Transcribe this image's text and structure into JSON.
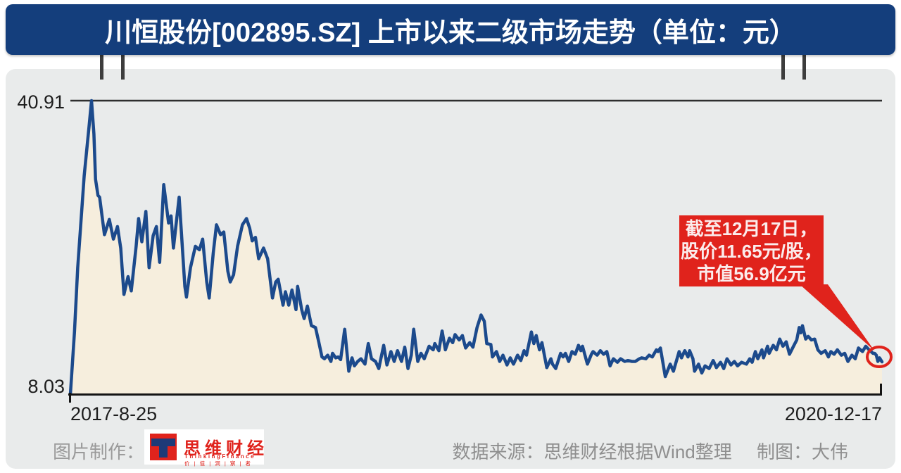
{
  "banner": {
    "title": "川恒股份[002895.SZ] 上市以来二级市场走势（单位：元）",
    "bg_color": "#143e7c"
  },
  "chart_data": {
    "type": "area",
    "title": "川恒股份[002895.SZ] 上市以来二级市场走势",
    "unit": "元",
    "ylim": [
      8.03,
      40.91
    ],
    "y_max_label": "40.91",
    "y_min_label": "8.03",
    "x_start_label": "2017-8-25",
    "x_end_label": "2020-12-17",
    "legend": "none",
    "grid": "off",
    "line_color": "#1c4a8c",
    "fill_color": "#f6eedd",
    "last_price": 11.65,
    "points": [
      [
        0,
        8.03
      ],
      [
        0.005,
        15.0
      ],
      [
        0.009,
        22.2
      ],
      [
        0.017,
        32.5
      ],
      [
        0.023,
        38.0
      ],
      [
        0.026,
        40.91
      ],
      [
        0.029,
        37.2
      ],
      [
        0.031,
        32.1
      ],
      [
        0.034,
        30.3
      ],
      [
        0.036,
        30.1
      ],
      [
        0.042,
        25.9
      ],
      [
        0.048,
        27.6
      ],
      [
        0.053,
        25.4
      ],
      [
        0.058,
        26.8
      ],
      [
        0.062,
        24.4
      ],
      [
        0.066,
        19.2
      ],
      [
        0.071,
        21.2
      ],
      [
        0.075,
        19.6
      ],
      [
        0.081,
        24.6
      ],
      [
        0.084,
        27.7
      ],
      [
        0.088,
        25.1
      ],
      [
        0.093,
        28.5
      ],
      [
        0.097,
        22.2
      ],
      [
        0.102,
        25.8
      ],
      [
        0.106,
        26.8
      ],
      [
        0.11,
        22.8
      ],
      [
        0.115,
        31.5
      ],
      [
        0.121,
        27.2
      ],
      [
        0.124,
        28.0
      ],
      [
        0.127,
        24.4
      ],
      [
        0.134,
        30.1
      ],
      [
        0.141,
        20.1
      ],
      [
        0.143,
        18.9
      ],
      [
        0.148,
        22.2
      ],
      [
        0.154,
        24.6
      ],
      [
        0.159,
        24.2
      ],
      [
        0.163,
        25.4
      ],
      [
        0.168,
        20.6
      ],
      [
        0.171,
        18.8
      ],
      [
        0.176,
        23.8
      ],
      [
        0.18,
        27.0
      ],
      [
        0.185,
        25.9
      ],
      [
        0.189,
        26.2
      ],
      [
        0.194,
        21.8
      ],
      [
        0.197,
        20.6
      ],
      [
        0.201,
        21.4
      ],
      [
        0.206,
        24.6
      ],
      [
        0.212,
        27.0
      ],
      [
        0.217,
        27.7
      ],
      [
        0.221,
        26.6
      ],
      [
        0.224,
        25.2
      ],
      [
        0.228,
        25.6
      ],
      [
        0.232,
        23.2
      ],
      [
        0.238,
        24.4
      ],
      [
        0.243,
        23.2
      ],
      [
        0.249,
        18.8
      ],
      [
        0.253,
        20.6
      ],
      [
        0.256,
        20.9
      ],
      [
        0.262,
        18.0
      ],
      [
        0.265,
        19.5
      ],
      [
        0.269,
        18.0
      ],
      [
        0.273,
        19.7
      ],
      [
        0.278,
        17.5
      ],
      [
        0.28,
        20.1
      ],
      [
        0.285,
        17.5
      ],
      [
        0.288,
        16.5
      ],
      [
        0.292,
        17.9
      ],
      [
        0.297,
        15.7
      ],
      [
        0.302,
        15.5
      ],
      [
        0.306,
        13.9
      ],
      [
        0.31,
        12.2
      ],
      [
        0.313,
        12.0
      ],
      [
        0.317,
        12.4
      ],
      [
        0.321,
        11.7
      ],
      [
        0.323,
        12.6
      ],
      [
        0.327,
        12.1
      ],
      [
        0.33,
        12.2
      ],
      [
        0.333,
        11.9
      ],
      [
        0.338,
        15.3
      ],
      [
        0.343,
        10.6
      ],
      [
        0.347,
        12.1
      ],
      [
        0.35,
        11.2
      ],
      [
        0.354,
        11.7
      ],
      [
        0.358,
        12.0
      ],
      [
        0.363,
        11.4
      ],
      [
        0.367,
        13.7
      ],
      [
        0.371,
        12.0
      ],
      [
        0.376,
        11.7
      ],
      [
        0.38,
        10.9
      ],
      [
        0.386,
        13.5
      ],
      [
        0.39,
        11.3
      ],
      [
        0.395,
        12.8
      ],
      [
        0.399,
        11.7
      ],
      [
        0.403,
        12.9
      ],
      [
        0.408,
        11.7
      ],
      [
        0.412,
        13.3
      ],
      [
        0.416,
        10.9
      ],
      [
        0.42,
        12.4
      ],
      [
        0.423,
        15.3
      ],
      [
        0.428,
        11.7
      ],
      [
        0.432,
        12.6
      ],
      [
        0.436,
        12.0
      ],
      [
        0.442,
        13.4
      ],
      [
        0.447,
        13.0
      ],
      [
        0.449,
        13.7
      ],
      [
        0.454,
        12.9
      ],
      [
        0.458,
        15.1
      ],
      [
        0.462,
        13.0
      ],
      [
        0.467,
        14.3
      ],
      [
        0.471,
        13.8
      ],
      [
        0.474,
        14.7
      ],
      [
        0.479,
        14.1
      ],
      [
        0.483,
        14.6
      ],
      [
        0.487,
        13.2
      ],
      [
        0.492,
        13.8
      ],
      [
        0.496,
        13.3
      ],
      [
        0.501,
        15.5
      ],
      [
        0.506,
        16.9
      ],
      [
        0.51,
        16.2
      ],
      [
        0.513,
        13.7
      ],
      [
        0.518,
        13.6
      ],
      [
        0.52,
        12.2
      ],
      [
        0.525,
        12.8
      ],
      [
        0.529,
        11.7
      ],
      [
        0.533,
        12.4
      ],
      [
        0.538,
        11.3
      ],
      [
        0.542,
        12.1
      ],
      [
        0.546,
        11.4
      ],
      [
        0.551,
        12.4
      ],
      [
        0.555,
        11.8
      ],
      [
        0.559,
        12.9
      ],
      [
        0.562,
        12.4
      ],
      [
        0.568,
        15.0
      ],
      [
        0.571,
        13.7
      ],
      [
        0.574,
        14.6
      ],
      [
        0.578,
        13.0
      ],
      [
        0.581,
        13.8
      ],
      [
        0.587,
        11.0
      ],
      [
        0.592,
        12.0
      ],
      [
        0.594,
        11.4
      ],
      [
        0.598,
        10.9
      ],
      [
        0.604,
        12.6
      ],
      [
        0.607,
        12.2
      ],
      [
        0.61,
        12.6
      ],
      [
        0.614,
        11.7
      ],
      [
        0.618,
        12.8
      ],
      [
        0.622,
        12.5
      ],
      [
        0.626,
        13.5
      ],
      [
        0.629,
        12.9
      ],
      [
        0.631,
        13.4
      ],
      [
        0.637,
        11.4
      ],
      [
        0.642,
        12.5
      ],
      [
        0.644,
        12.8
      ],
      [
        0.649,
        12.4
      ],
      [
        0.653,
        12.9
      ],
      [
        0.657,
        12.5
      ],
      [
        0.661,
        12.8
      ],
      [
        0.665,
        11.2
      ],
      [
        0.669,
        12.0
      ],
      [
        0.674,
        11.6
      ],
      [
        0.678,
        12.0
      ],
      [
        0.683,
        11.7
      ],
      [
        0.687,
        11.8
      ],
      [
        0.692,
        11.7
      ],
      [
        0.696,
        11.7
      ],
      [
        0.701,
        12.0
      ],
      [
        0.704,
        12.1
      ],
      [
        0.709,
        12.0
      ],
      [
        0.713,
        12.4
      ],
      [
        0.717,
        12.2
      ],
      [
        0.722,
        13.0
      ],
      [
        0.724,
        12.8
      ],
      [
        0.727,
        13.2
      ],
      [
        0.733,
        10.0
      ],
      [
        0.739,
        11.4
      ],
      [
        0.743,
        10.6
      ],
      [
        0.75,
        12.8
      ],
      [
        0.753,
        12.1
      ],
      [
        0.757,
        12.9
      ],
      [
        0.761,
        12.2
      ],
      [
        0.763,
        12.9
      ],
      [
        0.767,
        12.0
      ],
      [
        0.769,
        10.6
      ],
      [
        0.774,
        11.4
      ],
      [
        0.778,
        10.4
      ],
      [
        0.782,
        11.2
      ],
      [
        0.787,
        10.9
      ],
      [
        0.792,
        11.8
      ],
      [
        0.796,
        11.0
      ],
      [
        0.801,
        11.6
      ],
      [
        0.805,
        10.9
      ],
      [
        0.809,
        12.0
      ],
      [
        0.814,
        11.3
      ],
      [
        0.818,
        11.7
      ],
      [
        0.822,
        11.2
      ],
      [
        0.827,
        11.6
      ],
      [
        0.833,
        11.4
      ],
      [
        0.837,
        12.0
      ],
      [
        0.84,
        11.6
      ],
      [
        0.844,
        12.8
      ],
      [
        0.847,
        12.0
      ],
      [
        0.852,
        13.0
      ],
      [
        0.854,
        12.1
      ],
      [
        0.859,
        13.4
      ],
      [
        0.861,
        12.6
      ],
      [
        0.866,
        13.5
      ],
      [
        0.87,
        13.0
      ],
      [
        0.874,
        14.2
      ],
      [
        0.878,
        13.4
      ],
      [
        0.882,
        13.9
      ],
      [
        0.886,
        12.5
      ],
      [
        0.891,
        13.4
      ],
      [
        0.895,
        14.1
      ],
      [
        0.898,
        15.5
      ],
      [
        0.9,
        14.9
      ],
      [
        0.902,
        15.7
      ],
      [
        0.906,
        14.2
      ],
      [
        0.909,
        14.5
      ],
      [
        0.913,
        14.1
      ],
      [
        0.917,
        14.2
      ],
      [
        0.921,
        13.0
      ],
      [
        0.925,
        12.6
      ],
      [
        0.93,
        12.9
      ],
      [
        0.934,
        12.2
      ],
      [
        0.937,
        12.8
      ],
      [
        0.941,
        12.5
      ],
      [
        0.945,
        13.0
      ],
      [
        0.95,
        12.4
      ],
      [
        0.954,
        12.6
      ],
      [
        0.958,
        11.7
      ],
      [
        0.963,
        12.4
      ],
      [
        0.967,
        12.0
      ],
      [
        0.971,
        13.2
      ],
      [
        0.976,
        12.8
      ],
      [
        0.98,
        13.4
      ],
      [
        0.984,
        13.0
      ],
      [
        0.989,
        12.6
      ],
      [
        0.991,
        12.6
      ],
      [
        0.993,
        12.4
      ],
      [
        0.995,
        11.7
      ],
      [
        0.997,
        12.1
      ],
      [
        1,
        11.65
      ]
    ]
  },
  "annotation": {
    "lines": [
      "截至12月17日，",
      "股价11.65元/股，",
      "市值56.9亿元"
    ],
    "color": "#e0231c"
  },
  "footer": {
    "left_label": "图片制作：",
    "logo": {
      "cn": "思维财经",
      "en": "ThinkingFinance",
      "tagline": "价 | 值 | 洞 | 察 | 者",
      "brand_red": "#e0231c",
      "brand_navy": "#1e3a78"
    },
    "source": "数据来源：思维财经根据Wind整理",
    "credit": "制图：大伟"
  }
}
